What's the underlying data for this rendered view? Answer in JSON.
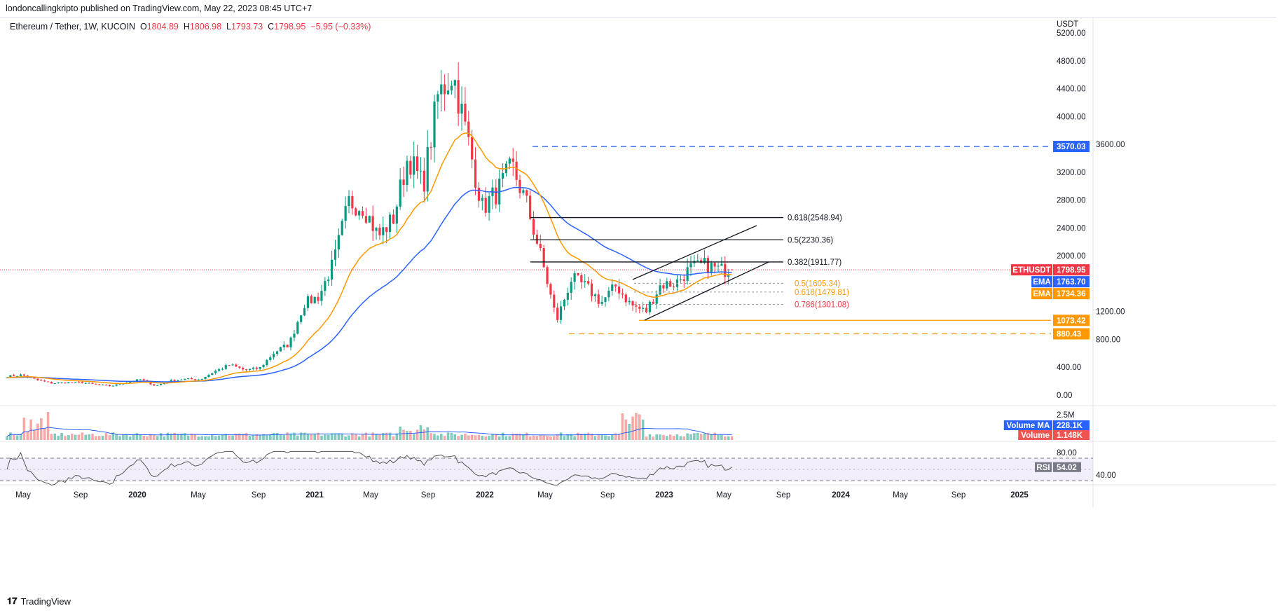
{
  "header": {
    "published": "londoncallingkripto published on TradingView.com, May 22, 2023 08:45 UTC+7"
  },
  "legend": {
    "symbol": "Ethereum / Tether, 1W, KUCOIN",
    "o_label": "O",
    "o": "1804.89",
    "h_label": "H",
    "h": "1806.98",
    "l_label": "L",
    "l": "1793.73",
    "c_label": "C",
    "c": "1798.95",
    "change": "−5.95 (−0.33%)"
  },
  "footer": {
    "brand": "TradingView"
  },
  "colors": {
    "up": "#089981",
    "down": "#f23645",
    "ema_fast": "#ff9800",
    "ema_slow": "#2962ff",
    "dashed_blue": "#2962ff",
    "orange": "#ff9800",
    "fib": "#131722"
  },
  "chart_data": {
    "type": "candlestick",
    "title": "Ethereum / Tether, 1W, KUCOIN",
    "currency": "USDT",
    "monthly_closes_from_may_2019": [
      268,
      290,
      218,
      172,
      180,
      182,
      152,
      130,
      180,
      226,
      133,
      206,
      231,
      225,
      345,
      434,
      360,
      386,
      615,
      737,
      1314,
      1418,
      1918,
      2772,
      2706,
      2275,
      2536,
      3433,
      3001,
      4288,
      4631,
      3683,
      2688,
      2920,
      3282,
      2727,
      1942,
      1067,
      1680,
      1553,
      1328,
      1572,
      1295,
      1196,
      1585,
      1605,
      1822,
      1870,
      1799
    ],
    "last_candle": {
      "open": 1804.89,
      "high": 1806.98,
      "low": 1793.73,
      "close": 1798.95
    },
    "y_ticks": [
      "5200.00",
      "4800.00",
      "4400.00",
      "4000.00",
      "3600.00",
      "3200.00",
      "2800.00",
      "2400.00",
      "2000.00",
      "1200.00",
      "800.00",
      "400.00",
      "0.00"
    ],
    "y_tick_values": [
      5200,
      4800,
      4400,
      4000,
      3600,
      3200,
      2800,
      2400,
      2000,
      1200,
      800,
      400,
      0
    ],
    "ylim": [
      0,
      5200
    ],
    "x_ticks": [
      "May",
      "Sep",
      "2020",
      "May",
      "Sep",
      "2021",
      "May",
      "Sep",
      "2022",
      "May",
      "Sep",
      "2023",
      "May",
      "Sep",
      "2024",
      "May",
      "Sep",
      "2025"
    ],
    "price_badges": [
      {
        "label": "",
        "value": "3570.03",
        "price": 3570.03,
        "color": "#2962ff"
      },
      {
        "label": "ETHUSDT",
        "value": "1798.95",
        "price": 1798.95,
        "color": "#f23645"
      },
      {
        "label": "EMA",
        "value": "1763.70",
        "price": 1763.7,
        "color": "#2962ff"
      },
      {
        "label": "EMA",
        "value": "1734.36",
        "price": 1734.36,
        "color": "#ff9800"
      },
      {
        "label": "",
        "value": "1073.42",
        "price": 1073.42,
        "color": "#ff9800"
      },
      {
        "label": "",
        "value": "880.43",
        "price": 880.43,
        "color": "#ff9800"
      }
    ],
    "fib_major": [
      {
        "text": "0.618(2548.94)",
        "price": 2548.94
      },
      {
        "text": "0.5(2230.36)",
        "price": 2230.36
      },
      {
        "text": "0.382(1911.77)",
        "price": 1911.77
      }
    ],
    "fib_minor": [
      {
        "text": "0.5(1605.34)",
        "price": 1605.34,
        "color": "#ff9800"
      },
      {
        "text": "0.618(1479.81)",
        "price": 1479.81,
        "color": "#ff9800"
      },
      {
        "text": "0.786(1301.08)",
        "price": 1301.08,
        "color": "#f23645"
      }
    ],
    "volume": {
      "axis_label": "2.5M",
      "ma_label": "Volume MA",
      "ma_value": "228.1K",
      "vol_label": "Volume",
      "vol_value": "1.148K"
    },
    "rsi": {
      "ticks": [
        "80.00",
        "40.00"
      ],
      "label": "RSI",
      "value": "54.02",
      "upper": 70,
      "lower": 30
    }
  }
}
